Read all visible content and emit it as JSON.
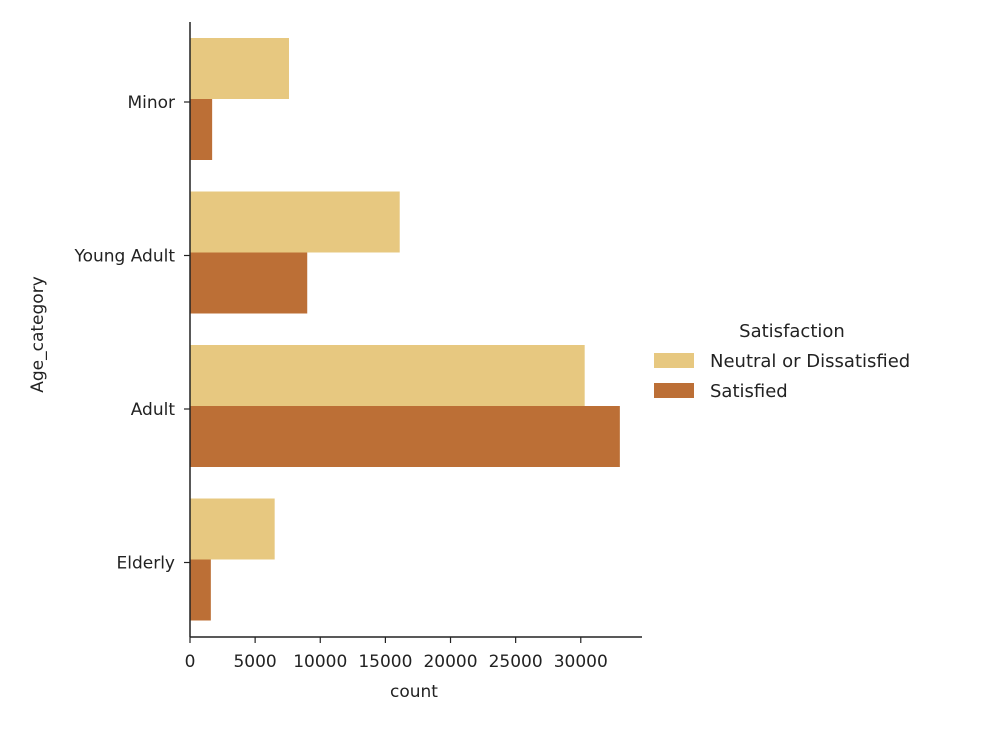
{
  "chart_data": {
    "type": "bar",
    "orientation": "horizontal",
    "categories": [
      "Minor",
      "Young Adult",
      "Adult",
      "Elderly"
    ],
    "series": [
      {
        "name": "Neutral or Dissatisfied",
        "color": "#e7c880",
        "values": [
          7600,
          16100,
          30300,
          6500
        ]
      },
      {
        "name": "Satisfied",
        "color": "#bc6f36",
        "values": [
          1700,
          9000,
          33000,
          1600
        ]
      }
    ],
    "xlabel": "count",
    "ylabel": "Age_category",
    "xlim": [
      0,
      34700
    ],
    "xticks": [
      0,
      5000,
      10000,
      15000,
      20000,
      25000,
      30000
    ],
    "grid": false,
    "legend": {
      "title": "Satisfaction",
      "placement": "right"
    }
  }
}
